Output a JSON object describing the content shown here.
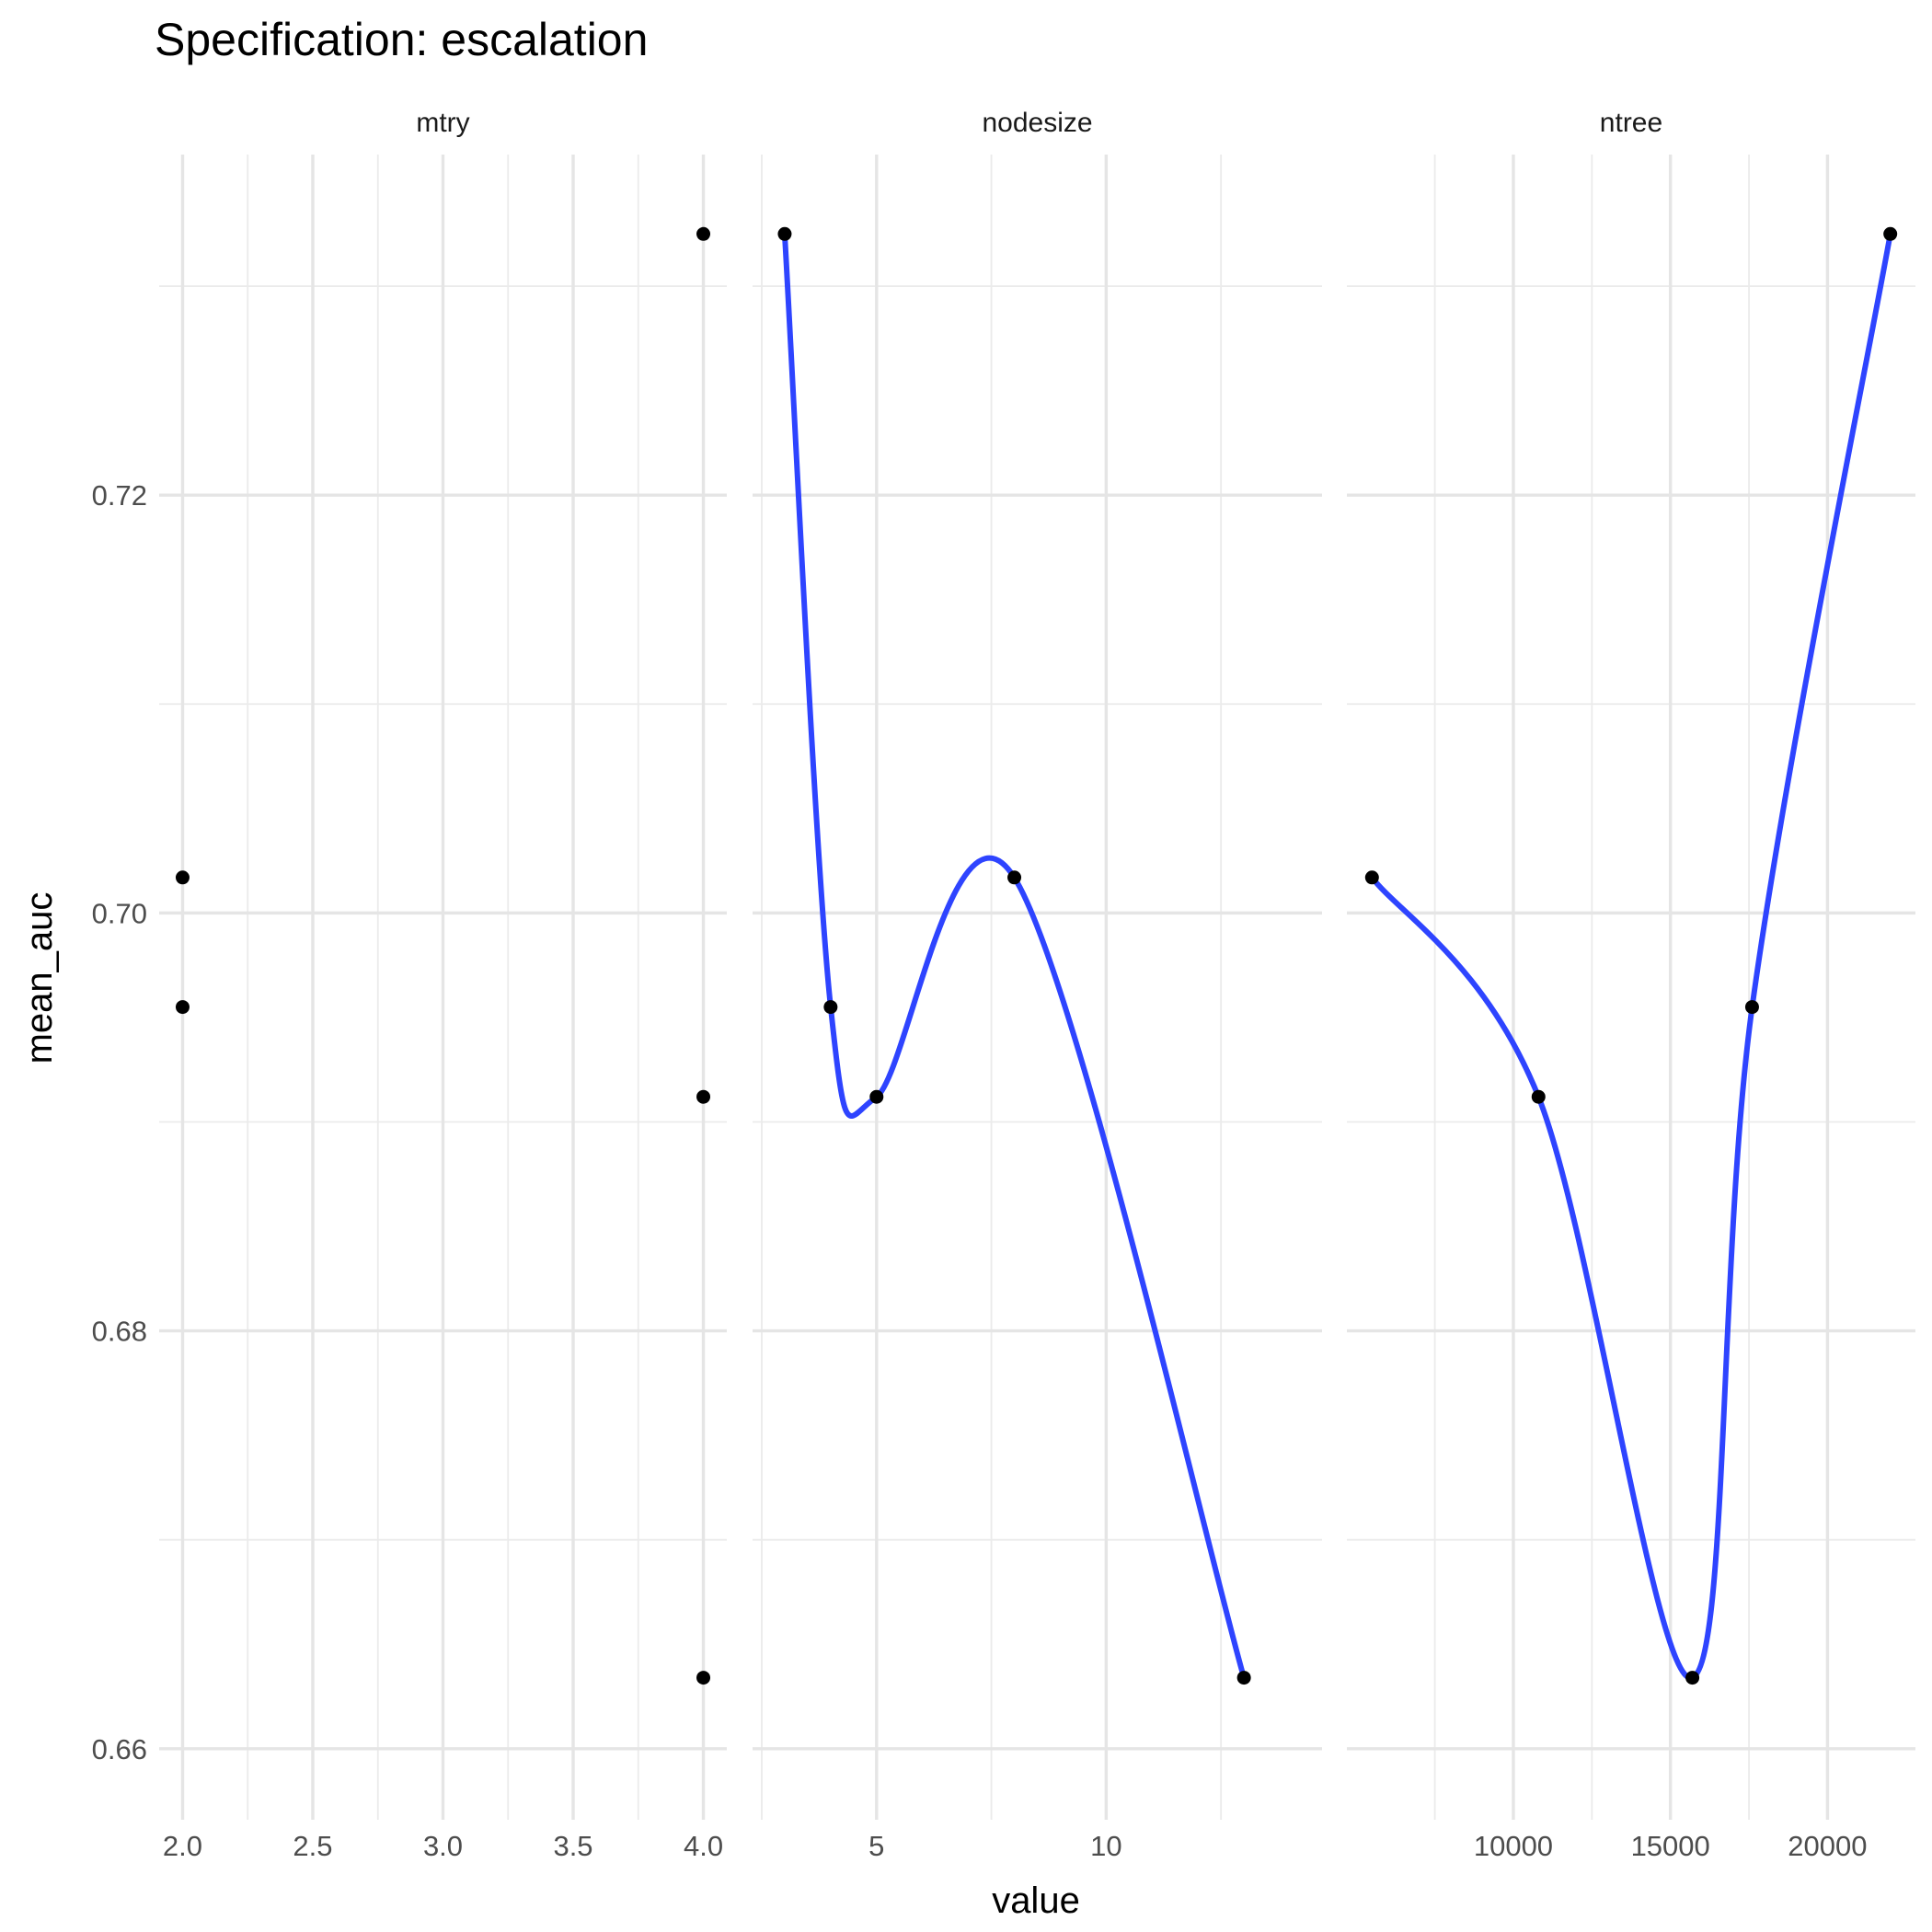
{
  "chart_data": {
    "type": "scatter",
    "title": "Specification: escalation",
    "xlabel": "value",
    "ylabel": "mean_auc",
    "y_ticks": [
      "0.66",
      "0.68",
      "0.70",
      "0.72"
    ],
    "y_tick_values": [
      0.66,
      0.68,
      0.7,
      0.72
    ],
    "ylim": [
      0.6566,
      0.7363
    ],
    "grid": true,
    "smooth_color": "#2e44ff",
    "point_color": "#000000",
    "panels": [
      {
        "name": "mtry",
        "xlim": [
          1.91,
          4.09
        ],
        "x_ticks": [
          "2.0",
          "2.5",
          "3.0",
          "3.5",
          "4.0"
        ],
        "x_tick_values": [
          2.0,
          2.5,
          3.0,
          3.5,
          4.0
        ],
        "x_minor": [
          2.25,
          2.75,
          3.25,
          3.75
        ],
        "smooth": false,
        "points": [
          {
            "x": 2,
            "y": 0.7017
          },
          {
            "x": 2,
            "y": 0.6955
          },
          {
            "x": 4,
            "y": 0.7325
          },
          {
            "x": 4,
            "y": 0.6912
          },
          {
            "x": 4,
            "y": 0.6634
          }
        ]
      },
      {
        "name": "nodesize",
        "xlim": [
          2.3,
          14.7
        ],
        "x_ticks": [
          "5",
          "10"
        ],
        "x_tick_values": [
          5,
          10
        ],
        "x_minor": [
          2.5,
          7.5,
          12.5
        ],
        "smooth": true,
        "points": [
          {
            "x": 3,
            "y": 0.7325
          },
          {
            "x": 4,
            "y": 0.6955
          },
          {
            "x": 5,
            "y": 0.6912
          },
          {
            "x": 8,
            "y": 0.7017
          },
          {
            "x": 13,
            "y": 0.6634
          }
        ]
      },
      {
        "name": "ntree",
        "xlim": [
          4700,
          22800
        ],
        "x_ticks": [
          "10000",
          "15000",
          "20000"
        ],
        "x_tick_values": [
          10000,
          15000,
          20000
        ],
        "x_minor": [
          7500,
          12500,
          17500
        ],
        "smooth": true,
        "points": [
          {
            "x": 5500,
            "y": 0.7017
          },
          {
            "x": 10800,
            "y": 0.6912
          },
          {
            "x": 15700,
            "y": 0.6634
          },
          {
            "x": 17600,
            "y": 0.6955
          },
          {
            "x": 22000,
            "y": 0.7325
          }
        ]
      }
    ]
  }
}
